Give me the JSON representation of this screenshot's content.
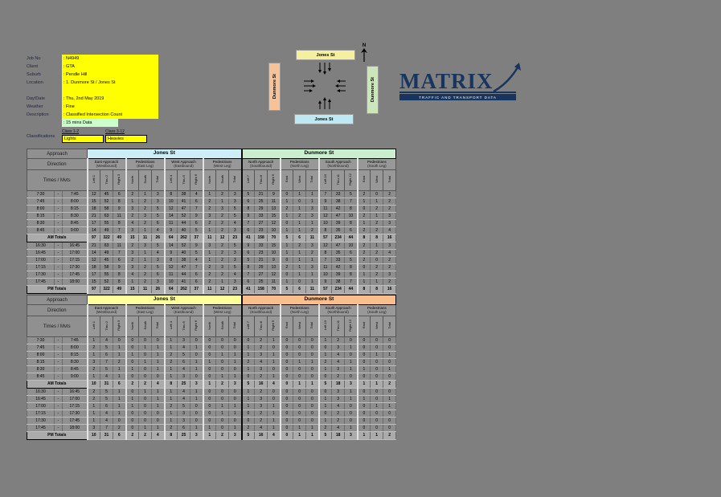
{
  "info": {
    "rows": [
      {
        "label": "Job No",
        "value": ": N4949"
      },
      {
        "label": "Client",
        "value": ": GTA"
      },
      {
        "label": "Suburb",
        "value": ": Pendle Hill"
      },
      {
        "label": "Location",
        "value": ": 1. Dunmore St / Jones St"
      },
      {
        "label": "",
        "value": ""
      },
      {
        "label": "Day/Date",
        "value": ": Thu, 2nd May 2019"
      },
      {
        "label": "Weather",
        "value": ": Fine"
      },
      {
        "label": "Description",
        "value": ": Classified Intersection Count"
      },
      {
        "label": "",
        "value": ": 15 mins Data"
      }
    ],
    "classifications": {
      "label": "Classifications",
      "classes": [
        {
          "header": "Class 1-2",
          "value": "Lights"
        },
        {
          "header": "Class 3-12",
          "value": "Heavies"
        }
      ]
    },
    "colors": {
      "field_bg": "#ffff00",
      "data_note_bg": "#ccffcc"
    }
  },
  "diagram": {
    "north_label": "N",
    "legs": {
      "top": {
        "name": "Jones St",
        "color": "#f5efa2"
      },
      "bottom": {
        "name": "Jones St",
        "color": "#bfe9f2"
      },
      "left": {
        "name": "Dunmore St",
        "color": "#f6c29a"
      },
      "right": {
        "name": "Dunmore St",
        "color": "#c9e7b8"
      }
    }
  },
  "logo": {
    "brand": "MATRIX",
    "tagline": "TRAFFIC AND TRANSPORT DATA",
    "color": "#17355e"
  },
  "table_common": {
    "corner_labels": [
      "Approach",
      "Direction",
      "Times / Mvts"
    ],
    "groups": [
      {
        "line1": "East Approach",
        "line2": "(Westbound)",
        "cols": [
          "Left 1",
          "Thru 2",
          "Right 3"
        ]
      },
      {
        "line1": "Pedestrians",
        "line2": "(East Leg)",
        "cols": [
          "North",
          "South",
          "Total"
        ]
      },
      {
        "line1": "West Approach",
        "line2": "(Eastbound)",
        "cols": [
          "Left 4",
          "Thru 5",
          "Right 6"
        ]
      },
      {
        "line1": "Pedestrians",
        "line2": "(West Leg)",
        "cols": [
          "North",
          "South",
          "Total"
        ]
      },
      {
        "line1": "North Approach",
        "line2": "(Southbound)",
        "cols": [
          "Left 7",
          "Thru 8",
          "Right 9"
        ]
      },
      {
        "line1": "Pedestrians",
        "line2": "(North Leg)",
        "cols": [
          "East",
          "West",
          "Total"
        ]
      },
      {
        "line1": "South Approach",
        "line2": "(Northbound)",
        "cols": [
          "Left 10",
          "Thru 11",
          "Right 12"
        ]
      },
      {
        "line1": "Pedestrians",
        "line2": "(South Leg)",
        "cols": [
          "East",
          "West",
          "Total"
        ]
      }
    ],
    "am_times": [
      [
        "7:30",
        "7:45"
      ],
      [
        "7:45",
        "8:00"
      ],
      [
        "8:00",
        "8:15"
      ],
      [
        "8:15",
        "8:30"
      ],
      [
        "8:30",
        "8:45"
      ],
      [
        "8:45",
        "9:00"
      ]
    ],
    "pm_times": [
      [
        "16:30",
        "16:45"
      ],
      [
        "16:45",
        "17:00"
      ],
      [
        "17:00",
        "17:15"
      ],
      [
        "17:15",
        "17:30"
      ],
      [
        "17:30",
        "17:45"
      ],
      [
        "17:45",
        "18:00"
      ]
    ],
    "time_separator": "-",
    "am_total_label": "AM Totals",
    "pm_total_label": "PM Totals"
  },
  "tables": [
    {
      "vehicle_class": "Lights",
      "streets": [
        {
          "name": "Jones St",
          "color": "#cdeef7"
        },
        {
          "name": "Dunmore St",
          "color": "#c9efcf"
        }
      ],
      "am_values": [
        [
          12,
          45,
          6,
          2,
          1,
          3,
          8,
          38,
          4,
          1,
          2,
          3,
          5,
          21,
          9,
          0,
          1,
          1,
          7,
          33,
          5,
          2,
          0,
          2
        ],
        [
          15,
          52,
          8,
          1,
          2,
          3,
          10,
          41,
          6,
          2,
          1,
          3,
          6,
          25,
          11,
          1,
          0,
          1,
          9,
          38,
          7,
          1,
          1,
          2
        ],
        [
          18,
          58,
          9,
          3,
          2,
          5,
          12,
          47,
          7,
          2,
          3,
          5,
          8,
          29,
          13,
          2,
          1,
          3,
          11,
          42,
          8,
          0,
          2,
          2
        ],
        [
          21,
          63,
          11,
          2,
          3,
          5,
          14,
          52,
          9,
          3,
          2,
          5,
          9,
          33,
          15,
          1,
          2,
          3,
          12,
          47,
          10,
          2,
          1,
          3
        ],
        [
          17,
          55,
          8,
          4,
          2,
          6,
          11,
          44,
          6,
          2,
          2,
          4,
          7,
          27,
          12,
          0,
          1,
          1,
          10,
          39,
          8,
          1,
          2,
          3
        ],
        [
          14,
          49,
          7,
          3,
          1,
          4,
          9,
          40,
          5,
          1,
          2,
          3,
          6,
          23,
          10,
          1,
          1,
          2,
          8,
          35,
          6,
          2,
          2,
          4
        ]
      ],
      "am_totals": [
        97,
        322,
        49,
        15,
        11,
        26,
        64,
        262,
        37,
        11,
        12,
        23,
        41,
        158,
        70,
        5,
        6,
        11,
        57,
        234,
        44,
        8,
        8,
        16
      ],
      "pm_values": [
        [
          21,
          63,
          11,
          2,
          3,
          5,
          14,
          52,
          9,
          3,
          2,
          5,
          9,
          33,
          15,
          1,
          2,
          3,
          12,
          47,
          10,
          2,
          1,
          3
        ],
        [
          14,
          49,
          7,
          3,
          1,
          4,
          9,
          40,
          5,
          1,
          2,
          3,
          6,
          23,
          10,
          1,
          1,
          2,
          8,
          35,
          6,
          2,
          2,
          4
        ],
        [
          12,
          45,
          6,
          2,
          1,
          3,
          8,
          38,
          4,
          1,
          2,
          3,
          5,
          21,
          9,
          0,
          1,
          1,
          7,
          33,
          5,
          2,
          0,
          2
        ],
        [
          18,
          58,
          9,
          3,
          2,
          5,
          12,
          47,
          7,
          2,
          3,
          5,
          8,
          29,
          13,
          2,
          1,
          3,
          11,
          42,
          8,
          0,
          2,
          2
        ],
        [
          17,
          55,
          8,
          4,
          2,
          6,
          11,
          44,
          6,
          2,
          2,
          4,
          7,
          27,
          12,
          0,
          1,
          1,
          10,
          39,
          8,
          1,
          2,
          3
        ],
        [
          15,
          52,
          8,
          1,
          2,
          3,
          10,
          41,
          6,
          2,
          1,
          3,
          6,
          25,
          11,
          1,
          0,
          1,
          9,
          38,
          7,
          1,
          1,
          2
        ]
      ],
      "pm_totals": [
        97,
        322,
        49,
        15,
        11,
        26,
        64,
        262,
        37,
        11,
        12,
        23,
        41,
        158,
        70,
        5,
        6,
        11,
        57,
        234,
        44,
        8,
        8,
        16
      ]
    },
    {
      "vehicle_class": "Heavies",
      "streets": [
        {
          "name": "Jones St",
          "color": "#ffff9c"
        },
        {
          "name": "Dunmore St",
          "color": "#f8bf8d"
        }
      ],
      "am_values": [
        [
          1,
          4,
          0,
          0,
          0,
          0,
          1,
          3,
          0,
          0,
          0,
          0,
          0,
          2,
          1,
          0,
          0,
          0,
          1,
          2,
          0,
          0,
          0,
          0
        ],
        [
          2,
          5,
          1,
          0,
          1,
          1,
          1,
          4,
          1,
          0,
          0,
          0,
          1,
          2,
          0,
          0,
          0,
          0,
          0,
          3,
          1,
          0,
          0,
          0
        ],
        [
          1,
          6,
          1,
          1,
          0,
          1,
          2,
          5,
          0,
          0,
          1,
          1,
          1,
          3,
          1,
          0,
          0,
          0,
          1,
          4,
          0,
          0,
          1,
          1
        ],
        [
          3,
          7,
          2,
          0,
          1,
          1,
          2,
          6,
          1,
          1,
          0,
          1,
          2,
          4,
          1,
          0,
          1,
          1,
          2,
          4,
          1,
          0,
          0,
          0
        ],
        [
          2,
          5,
          1,
          1,
          0,
          1,
          1,
          4,
          1,
          0,
          0,
          0,
          1,
          3,
          0,
          0,
          0,
          0,
          1,
          3,
          1,
          1,
          0,
          1
        ],
        [
          1,
          4,
          1,
          0,
          0,
          0,
          1,
          3,
          0,
          0,
          1,
          1,
          0,
          2,
          1,
          0,
          0,
          0,
          0,
          2,
          0,
          0,
          0,
          0
        ]
      ],
      "am_totals": [
        10,
        31,
        6,
        2,
        2,
        4,
        8,
        25,
        3,
        1,
        2,
        3,
        5,
        16,
        4,
        0,
        1,
        1,
        5,
        18,
        3,
        1,
        1,
        2
      ],
      "pm_values": [
        [
          2,
          5,
          1,
          0,
          1,
          1,
          1,
          4,
          1,
          0,
          0,
          0,
          1,
          2,
          0,
          0,
          0,
          0,
          0,
          3,
          1,
          0,
          0,
          0
        ],
        [
          2,
          5,
          1,
          1,
          0,
          1,
          1,
          4,
          1,
          0,
          0,
          0,
          1,
          3,
          0,
          0,
          0,
          0,
          1,
          3,
          1,
          1,
          0,
          1
        ],
        [
          1,
          6,
          1,
          1,
          0,
          1,
          2,
          5,
          0,
          0,
          1,
          1,
          1,
          3,
          1,
          0,
          0,
          0,
          1,
          4,
          0,
          0,
          1,
          1
        ],
        [
          1,
          4,
          1,
          0,
          0,
          0,
          1,
          3,
          0,
          0,
          1,
          1,
          0,
          2,
          1,
          0,
          0,
          0,
          0,
          2,
          0,
          0,
          0,
          0
        ],
        [
          1,
          4,
          0,
          0,
          0,
          0,
          1,
          3,
          0,
          0,
          0,
          0,
          0,
          2,
          1,
          0,
          0,
          0,
          1,
          2,
          0,
          0,
          0,
          0
        ],
        [
          3,
          7,
          2,
          0,
          1,
          1,
          2,
          6,
          1,
          1,
          0,
          1,
          2,
          4,
          1,
          0,
          1,
          1,
          2,
          4,
          1,
          0,
          0,
          0
        ]
      ],
      "pm_totals": [
        10,
        31,
        6,
        2,
        2,
        4,
        8,
        25,
        3,
        1,
        2,
        3,
        5,
        16,
        4,
        0,
        1,
        1,
        5,
        18,
        3,
        1,
        1,
        2
      ]
    }
  ]
}
